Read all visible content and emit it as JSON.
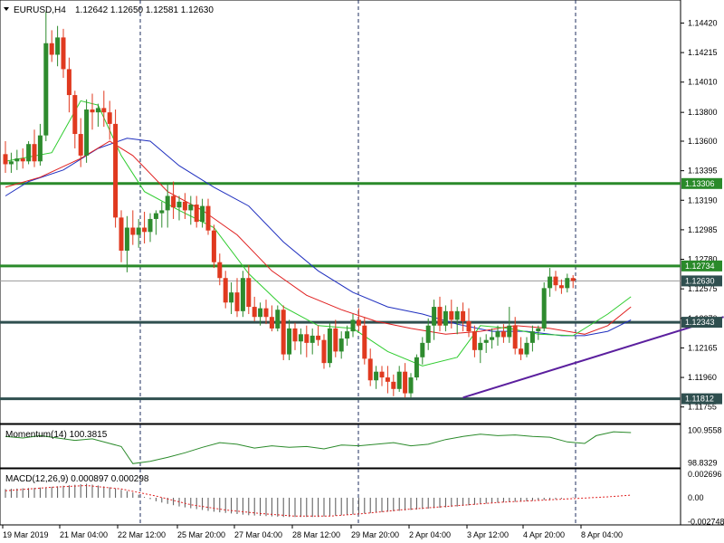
{
  "header": {
    "symbol": "EURUSD,H4",
    "ohlc": "1.12642 1.12650 1.12581 1.12630"
  },
  "colors": {
    "bull": "#2e8b2e",
    "bear": "#e0391f",
    "ma_fast": "#2ecc2e",
    "ma_mid": "#e02020",
    "ma_slow": "#1f2fbf",
    "green_level": "#2a8a2a",
    "dark_level": "#2f4f4f",
    "trendline": "#5b1f9e",
    "momentum": "#2a8a2a",
    "macd_signal": "#e02020"
  },
  "chart_data": {
    "type": "candlestick",
    "price_axis": {
      "range": [
        1.1164,
        1.1458
      ],
      "ticks": [
        "1.14420",
        "1.14215",
        "1.14010",
        "1.13800",
        "1.13600",
        "1.13395",
        "1.13190",
        "1.12985",
        "1.12780",
        "1.12575",
        "1.12370",
        "1.12165",
        "1.11960",
        "1.11755"
      ]
    },
    "time_labels": [
      "19 Mar 2019",
      "21 Mar 04:00",
      "22 Mar 12:00",
      "25 Mar 20:00",
      "27 Mar 04:00",
      "28 Mar 12:00",
      "29 Mar 20:00",
      "2 Apr 04:00",
      "3 Apr 12:00",
      "4 Apr 20:00",
      "8 Apr 04:00"
    ],
    "levels": [
      {
        "price": 1.13306,
        "label": "1.13306",
        "kind": "green"
      },
      {
        "price": 1.12734,
        "label": "1.12734",
        "kind": "green"
      },
      {
        "price": 1.1263,
        "label": "1.12630",
        "kind": "current"
      },
      {
        "price": 1.12343,
        "label": "1.12343",
        "kind": "dark"
      },
      {
        "price": 1.11812,
        "label": "1.11812",
        "kind": "dark"
      }
    ],
    "trendline": {
      "from": [
        79,
        1.1182
      ],
      "to": [
        124,
        1.1238
      ]
    },
    "candles": [
      [
        1.1351,
        1.136,
        1.1338,
        1.1344
      ],
      [
        1.1344,
        1.1352,
        1.1338,
        1.1346
      ],
      [
        1.1346,
        1.1354,
        1.134,
        1.1348
      ],
      [
        1.1348,
        1.1355,
        1.1341,
        1.1346
      ],
      [
        1.1346,
        1.136,
        1.1344,
        1.1358
      ],
      [
        1.1358,
        1.1368,
        1.1342,
        1.1346
      ],
      [
        1.1346,
        1.1372,
        1.1343,
        1.1364
      ],
      [
        1.1364,
        1.145,
        1.136,
        1.1428
      ],
      [
        1.1428,
        1.1437,
        1.1415,
        1.142
      ],
      [
        1.142,
        1.144,
        1.1412,
        1.1432
      ],
      [
        1.1432,
        1.1438,
        1.1404,
        1.141
      ],
      [
        1.141,
        1.1418,
        1.138,
        1.1392
      ],
      [
        1.1392,
        1.1395,
        1.1355,
        1.1365
      ],
      [
        1.1365,
        1.1376,
        1.1342,
        1.135
      ],
      [
        1.135,
        1.1389,
        1.1345,
        1.1382
      ],
      [
        1.1382,
        1.1393,
        1.1368,
        1.138
      ],
      [
        1.138,
        1.1386,
        1.137,
        1.1383
      ],
      [
        1.1383,
        1.1395,
        1.137,
        1.138
      ],
      [
        1.138,
        1.1388,
        1.1361,
        1.1372
      ],
      [
        1.1372,
        1.1382,
        1.13,
        1.1307
      ],
      [
        1.1307,
        1.1312,
        1.1276,
        1.1284
      ],
      [
        1.1284,
        1.1308,
        1.1269,
        1.13
      ],
      [
        1.13,
        1.1312,
        1.1288,
        1.1295
      ],
      [
        1.1295,
        1.1306,
        1.1286,
        1.13
      ],
      [
        1.13,
        1.1311,
        1.1289,
        1.1297
      ],
      [
        1.1297,
        1.131,
        1.129,
        1.1306
      ],
      [
        1.1306,
        1.1312,
        1.1295,
        1.131
      ],
      [
        1.131,
        1.1318,
        1.13,
        1.1312
      ],
      [
        1.1312,
        1.133,
        1.13,
        1.1322
      ],
      [
        1.1322,
        1.1332,
        1.1306,
        1.1314
      ],
      [
        1.1314,
        1.1322,
        1.1305,
        1.1318
      ],
      [
        1.1318,
        1.1324,
        1.1306,
        1.1312
      ],
      [
        1.1312,
        1.1322,
        1.1302,
        1.1316
      ],
      [
        1.1316,
        1.1322,
        1.13,
        1.1304
      ],
      [
        1.1304,
        1.132,
        1.13,
        1.1315
      ],
      [
        1.1315,
        1.132,
        1.1295,
        1.1298
      ],
      [
        1.1298,
        1.1302,
        1.1272,
        1.1276
      ],
      [
        1.1276,
        1.1282,
        1.126,
        1.1265
      ],
      [
        1.1265,
        1.127,
        1.1244,
        1.1248
      ],
      [
        1.1248,
        1.1262,
        1.124,
        1.1255
      ],
      [
        1.1255,
        1.1265,
        1.1238,
        1.1242
      ],
      [
        1.1242,
        1.127,
        1.1238,
        1.1265
      ],
      [
        1.1265,
        1.1274,
        1.124,
        1.1245
      ],
      [
        1.1245,
        1.1252,
        1.1235,
        1.1238
      ],
      [
        1.1238,
        1.1248,
        1.1232,
        1.1244
      ],
      [
        1.1244,
        1.125,
        1.1233,
        1.1238
      ],
      [
        1.1238,
        1.1246,
        1.1228,
        1.123
      ],
      [
        1.123,
        1.1246,
        1.1228,
        1.1243
      ],
      [
        1.1243,
        1.1246,
        1.1208,
        1.1212
      ],
      [
        1.1212,
        1.1236,
        1.1208,
        1.123
      ],
      [
        1.123,
        1.1234,
        1.1215,
        1.1221
      ],
      [
        1.1221,
        1.123,
        1.1212,
        1.1226
      ],
      [
        1.1226,
        1.1232,
        1.121,
        1.122
      ],
      [
        1.122,
        1.123,
        1.1212,
        1.1225
      ],
      [
        1.1225,
        1.1232,
        1.1218,
        1.1222
      ],
      [
        1.1222,
        1.1226,
        1.1202,
        1.1206
      ],
      [
        1.1206,
        1.1234,
        1.1203,
        1.123
      ],
      [
        1.123,
        1.1236,
        1.121,
        1.1214
      ],
      [
        1.1214,
        1.1228,
        1.1209,
        1.1223
      ],
      [
        1.1223,
        1.1232,
        1.1218,
        1.1228
      ],
      [
        1.1228,
        1.124,
        1.1224,
        1.1236
      ],
      [
        1.1236,
        1.1244,
        1.1228,
        1.1232
      ],
      [
        1.1232,
        1.1238,
        1.1205,
        1.1209
      ],
      [
        1.1209,
        1.1216,
        1.119,
        1.1194
      ],
      [
        1.1194,
        1.1204,
        1.1188,
        1.12
      ],
      [
        1.12,
        1.1204,
        1.119,
        1.1196
      ],
      [
        1.1196,
        1.1204,
        1.1185,
        1.1193
      ],
      [
        1.1193,
        1.1198,
        1.1183,
        1.1188
      ],
      [
        1.1188,
        1.1204,
        1.1186,
        1.12
      ],
      [
        1.12,
        1.1206,
        1.1182,
        1.1185
      ],
      [
        1.1185,
        1.1199,
        1.1182,
        1.1196
      ],
      [
        1.1196,
        1.1212,
        1.1194,
        1.121
      ],
      [
        1.121,
        1.1224,
        1.1205,
        1.122
      ],
      [
        1.122,
        1.1237,
        1.1215,
        1.1232
      ],
      [
        1.1232,
        1.125,
        1.1222,
        1.1245
      ],
      [
        1.1245,
        1.1252,
        1.1228,
        1.1232
      ],
      [
        1.1232,
        1.1246,
        1.1228,
        1.1242
      ],
      [
        1.1242,
        1.125,
        1.123,
        1.1236
      ],
      [
        1.1236,
        1.1245,
        1.1226,
        1.1242
      ],
      [
        1.1242,
        1.1248,
        1.1228,
        1.1235
      ],
      [
        1.1235,
        1.1244,
        1.1224,
        1.1228
      ],
      [
        1.1228,
        1.1232,
        1.121,
        1.1215
      ],
      [
        1.1215,
        1.1224,
        1.1206,
        1.122
      ],
      [
        1.122,
        1.1226,
        1.1213,
        1.1222
      ],
      [
        1.1222,
        1.123,
        1.1216,
        1.1224
      ],
      [
        1.1224,
        1.1232,
        1.1218,
        1.1228
      ],
      [
        1.1228,
        1.1233,
        1.122,
        1.1224
      ],
      [
        1.1224,
        1.1245,
        1.122,
        1.1232
      ],
      [
        1.1232,
        1.1238,
        1.1212,
        1.1216
      ],
      [
        1.1216,
        1.1224,
        1.1208,
        1.1212
      ],
      [
        1.1212,
        1.1224,
        1.121,
        1.122
      ],
      [
        1.122,
        1.1232,
        1.1214,
        1.1228
      ],
      [
        1.1228,
        1.1232,
        1.1222,
        1.123
      ],
      [
        1.123,
        1.1262,
        1.1228,
        1.1258
      ],
      [
        1.1258,
        1.1272,
        1.1252,
        1.1266
      ],
      [
        1.1266,
        1.127,
        1.1256,
        1.126
      ],
      [
        1.126,
        1.1264,
        1.1254,
        1.1258
      ],
      [
        1.1258,
        1.1268,
        1.1255,
        1.1265
      ],
      [
        1.1265,
        1.1267,
        1.1258,
        1.1263
      ]
    ],
    "ma_fast": {
      "points": [
        [
          0,
          1.1346
        ],
        [
          8,
          1.1352
        ],
        [
          13,
          1.1388
        ],
        [
          16,
          1.1385
        ],
        [
          20,
          1.135
        ],
        [
          24,
          1.1325
        ],
        [
          30,
          1.1312
        ],
        [
          36,
          1.13
        ],
        [
          42,
          1.1268
        ],
        [
          48,
          1.1245
        ],
        [
          54,
          1.1232
        ],
        [
          60,
          1.123
        ],
        [
          66,
          1.1214
        ],
        [
          72,
          1.1204
        ],
        [
          78,
          1.121
        ],
        [
          82,
          1.1232
        ],
        [
          87,
          1.123
        ],
        [
          92,
          1.1226
        ],
        [
          98,
          1.1225
        ],
        [
          104,
          1.124
        ],
        [
          108,
          1.1252
        ]
      ]
    },
    "ma_mid": {
      "points": [
        [
          0,
          1.1328
        ],
        [
          6,
          1.1335
        ],
        [
          13,
          1.1348
        ],
        [
          18,
          1.136
        ],
        [
          22,
          1.135
        ],
        [
          28,
          1.1325
        ],
        [
          34,
          1.1312
        ],
        [
          40,
          1.1295
        ],
        [
          46,
          1.127
        ],
        [
          52,
          1.1253
        ],
        [
          58,
          1.1243
        ],
        [
          64,
          1.1235
        ],
        [
          70,
          1.123
        ],
        [
          76,
          1.1226
        ],
        [
          82,
          1.1228
        ],
        [
          88,
          1.1232
        ],
        [
          94,
          1.123
        ],
        [
          100,
          1.1226
        ],
        [
          104,
          1.1232
        ],
        [
          108,
          1.1245
        ]
      ]
    },
    "ma_slow": {
      "points": [
        [
          0,
          1.1322
        ],
        [
          4,
          1.1332
        ],
        [
          10,
          1.134
        ],
        [
          16,
          1.1355
        ],
        [
          21,
          1.1362
        ],
        [
          25,
          1.136
        ],
        [
          30,
          1.1343
        ],
        [
          36,
          1.1328
        ],
        [
          42,
          1.1315
        ],
        [
          48,
          1.129
        ],
        [
          54,
          1.127
        ],
        [
          60,
          1.1255
        ],
        [
          66,
          1.1245
        ],
        [
          72,
          1.124
        ],
        [
          78,
          1.1233
        ],
        [
          84,
          1.1228
        ],
        [
          90,
          1.1228
        ],
        [
          96,
          1.1225
        ],
        [
          100,
          1.1225
        ],
        [
          104,
          1.1228
        ],
        [
          108,
          1.1236
        ]
      ]
    },
    "momentum": {
      "label": "Momentum(14) 100.3815",
      "ticks": [
        "100.9558",
        "98.8329"
      ],
      "range": [
        98.7,
        101.15
      ],
      "points": [
        [
          0,
          100.55
        ],
        [
          3,
          100.45
        ],
        [
          6,
          100.6
        ],
        [
          9,
          100.45
        ],
        [
          12,
          100.3
        ],
        [
          15,
          100.4
        ],
        [
          18,
          100.1
        ],
        [
          20,
          99.9
        ],
        [
          22,
          98.8
        ],
        [
          25,
          98.95
        ],
        [
          28,
          99.2
        ],
        [
          31,
          99.5
        ],
        [
          34,
          99.85
        ],
        [
          37,
          100.15
        ],
        [
          40,
          100.05
        ],
        [
          43,
          99.8
        ],
        [
          46,
          99.95
        ],
        [
          49,
          99.85
        ],
        [
          52,
          99.9
        ],
        [
          55,
          99.75
        ],
        [
          58,
          100.0
        ],
        [
          61,
          99.95
        ],
        [
          64,
          100.05
        ],
        [
          67,
          100.15
        ],
        [
          70,
          99.95
        ],
        [
          73,
          100.05
        ],
        [
          76,
          100.35
        ],
        [
          79,
          100.55
        ],
        [
          82,
          100.7
        ],
        [
          85,
          100.6
        ],
        [
          88,
          100.65
        ],
        [
          91,
          100.55
        ],
        [
          94,
          100.5
        ],
        [
          97,
          100.2
        ],
        [
          100,
          100.1
        ],
        [
          102,
          100.6
        ],
        [
          105,
          100.85
        ],
        [
          108,
          100.8
        ]
      ]
    },
    "macd": {
      "label": "MACD(12,26,9) 0.000897 0.000298",
      "ticks": [
        "0.002696",
        "0.00",
        "-0.002748"
      ],
      "range": [
        -0.0029,
        0.0029
      ],
      "hist_points": [
        [
          0,
          0.001
        ],
        [
          7,
          0.0012
        ],
        [
          14,
          0.0016
        ],
        [
          18,
          0.0012
        ],
        [
          22,
          0.0006
        ],
        [
          26,
          -0.0004
        ],
        [
          30,
          -0.001
        ],
        [
          36,
          -0.0016
        ],
        [
          42,
          -0.002
        ],
        [
          48,
          -0.0022
        ],
        [
          54,
          -0.0022
        ],
        [
          60,
          -0.0019
        ],
        [
          66,
          -0.0016
        ],
        [
          72,
          -0.0013
        ],
        [
          78,
          -0.001
        ],
        [
          84,
          -0.0006
        ],
        [
          90,
          -0.0004
        ],
        [
          96,
          -0.0001
        ],
        [
          100,
          0.0002
        ],
        [
          104,
          0.0006
        ],
        [
          108,
          0.0009
        ]
      ],
      "signal_points": [
        [
          0,
          0.0008
        ],
        [
          8,
          0.0012
        ],
        [
          14,
          0.0014
        ],
        [
          20,
          0.001
        ],
        [
          26,
          0.0002
        ],
        [
          32,
          -0.0008
        ],
        [
          38,
          -0.0014
        ],
        [
          44,
          -0.0018
        ],
        [
          50,
          -0.0021
        ],
        [
          56,
          -0.0021
        ],
        [
          62,
          -0.0018
        ],
        [
          68,
          -0.0014
        ],
        [
          74,
          -0.0011
        ],
        [
          80,
          -0.0008
        ],
        [
          86,
          -0.0005
        ],
        [
          92,
          -0.0003
        ],
        [
          98,
          -0.0001
        ],
        [
          104,
          0.0001
        ],
        [
          108,
          0.0003
        ]
      ]
    }
  }
}
